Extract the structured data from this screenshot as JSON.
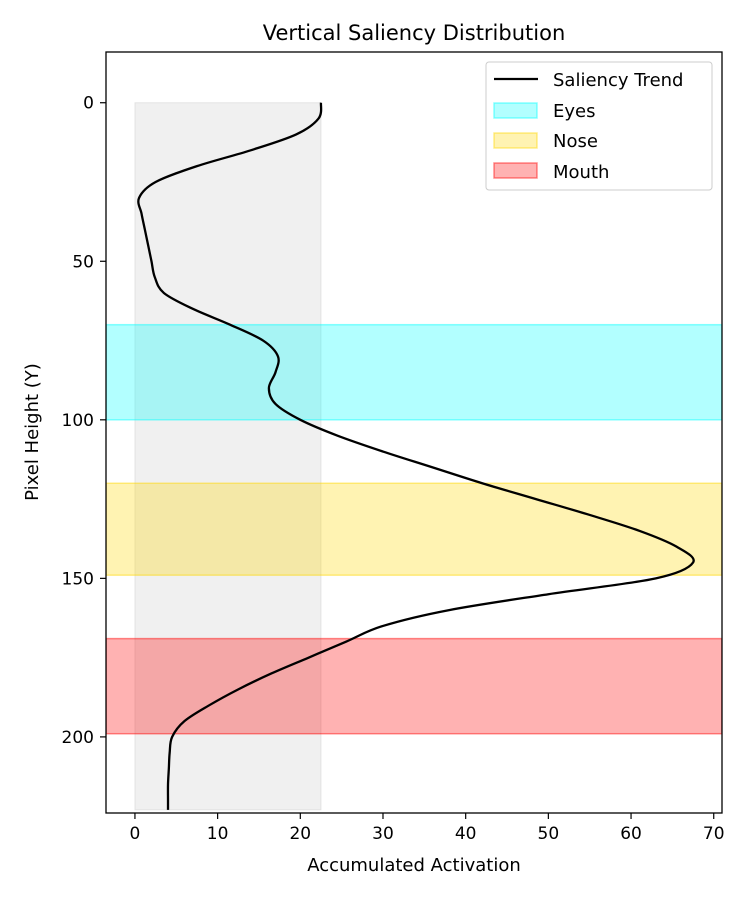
{
  "chart_data": {
    "type": "line",
    "title": "Vertical Saliency Distribution",
    "xlabel": "Accumulated Activation",
    "ylabel": "Pixel Height (Y)",
    "xlim": [
      -3.5,
      71
    ],
    "ylim": [
      224,
      -16
    ],
    "y_inverted": true,
    "xticks": [
      0,
      10,
      20,
      30,
      40,
      50,
      60,
      70
    ],
    "yticks": [
      0,
      50,
      100,
      150,
      200
    ],
    "grid": false,
    "legend_position": "top-right",
    "series": [
      {
        "name": "Saliency Trend",
        "color": "#000000",
        "points": [
          {
            "x": 22.5,
            "y": 0
          },
          {
            "x": 22.2,
            "y": 5
          },
          {
            "x": 19.5,
            "y": 10
          },
          {
            "x": 14.0,
            "y": 15
          },
          {
            "x": 7.5,
            "y": 20
          },
          {
            "x": 2.5,
            "y": 25
          },
          {
            "x": 0.5,
            "y": 30
          },
          {
            "x": 0.8,
            "y": 35
          },
          {
            "x": 1.2,
            "y": 40
          },
          {
            "x": 1.6,
            "y": 45
          },
          {
            "x": 2.0,
            "y": 50
          },
          {
            "x": 2.4,
            "y": 55
          },
          {
            "x": 3.5,
            "y": 60
          },
          {
            "x": 7.0,
            "y": 65
          },
          {
            "x": 11.5,
            "y": 70
          },
          {
            "x": 15.5,
            "y": 75
          },
          {
            "x": 17.3,
            "y": 80
          },
          {
            "x": 17.0,
            "y": 85
          },
          {
            "x": 16.2,
            "y": 90
          },
          {
            "x": 17.0,
            "y": 95
          },
          {
            "x": 20.0,
            "y": 100
          },
          {
            "x": 24.5,
            "y": 105
          },
          {
            "x": 30.0,
            "y": 110
          },
          {
            "x": 36.0,
            "y": 115
          },
          {
            "x": 42.0,
            "y": 120
          },
          {
            "x": 48.5,
            "y": 125
          },
          {
            "x": 55.0,
            "y": 130
          },
          {
            "x": 61.0,
            "y": 135
          },
          {
            "x": 65.5,
            "y": 140
          },
          {
            "x": 67.5,
            "y": 145
          },
          {
            "x": 63.0,
            "y": 150
          },
          {
            "x": 50.0,
            "y": 155
          },
          {
            "x": 38.0,
            "y": 160
          },
          {
            "x": 30.0,
            "y": 165
          },
          {
            "x": 25.5,
            "y": 170
          },
          {
            "x": 21.0,
            "y": 175
          },
          {
            "x": 16.5,
            "y": 180
          },
          {
            "x": 12.5,
            "y": 185
          },
          {
            "x": 9.0,
            "y": 190
          },
          {
            "x": 6.0,
            "y": 195
          },
          {
            "x": 4.5,
            "y": 200
          },
          {
            "x": 4.2,
            "y": 205
          },
          {
            "x": 4.1,
            "y": 210
          },
          {
            "x": 4.0,
            "y": 215
          },
          {
            "x": 4.0,
            "y": 220
          },
          {
            "x": 4.0,
            "y": 223
          }
        ]
      }
    ],
    "background_region": {
      "x_range": [
        0,
        22.5
      ],
      "y_range": [
        0,
        223
      ],
      "color": "#d9d9d9",
      "opacity": 0.4
    },
    "regions": [
      {
        "name": "Eyes",
        "y_range": [
          70,
          100
        ],
        "color": "#00ffff",
        "opacity": 0.3
      },
      {
        "name": "Nose",
        "y_range": [
          120,
          149
        ],
        "color": "#ffd700",
        "opacity": 0.3
      },
      {
        "name": "Mouth",
        "y_range": [
          169,
          199
        ],
        "color": "#ff0000",
        "opacity": 0.3
      }
    ]
  }
}
